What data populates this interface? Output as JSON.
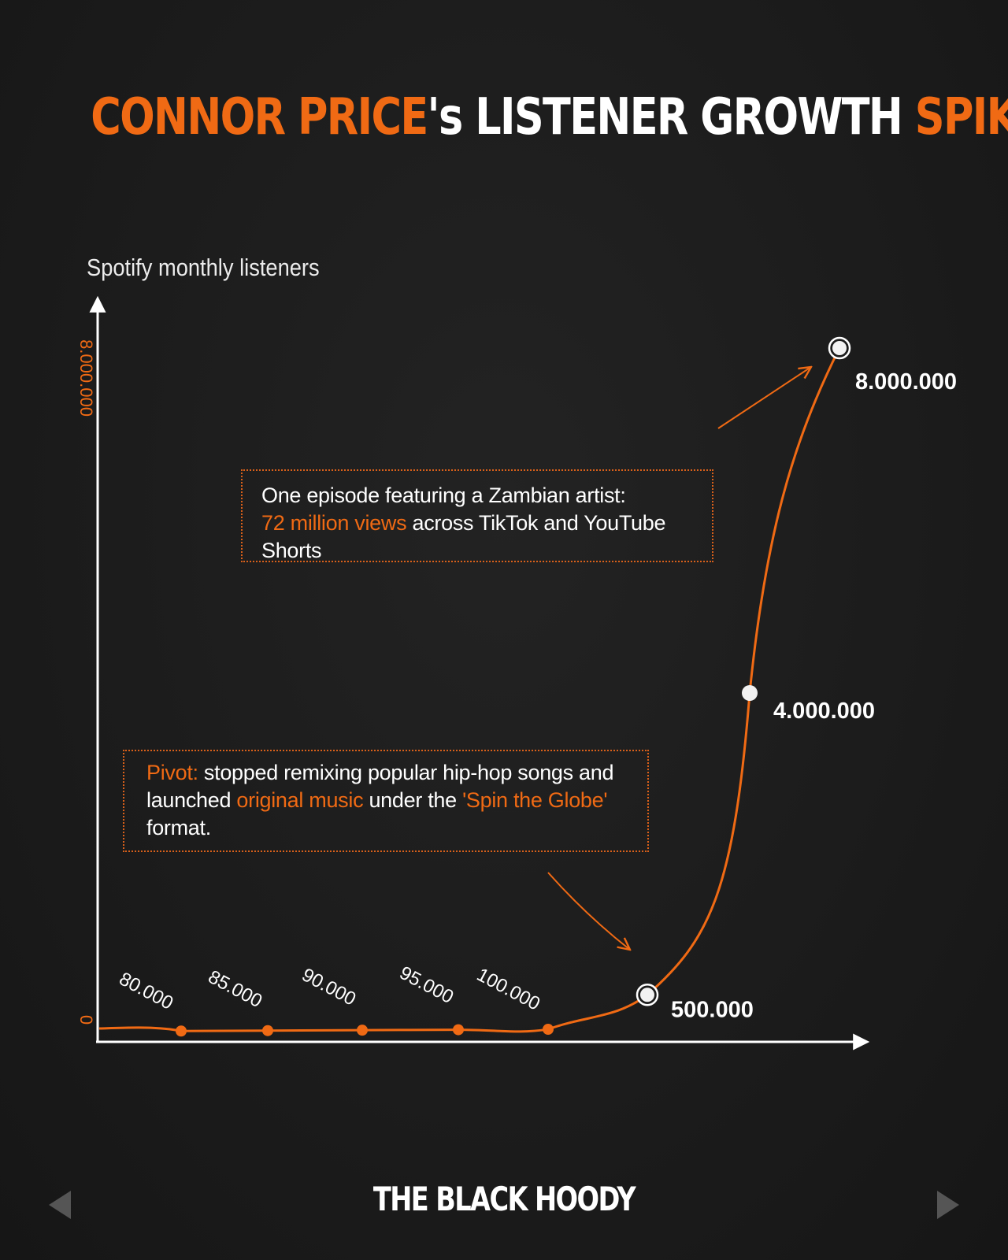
{
  "title": {
    "part1": "CONNOR PRICE",
    "part2": "'s LISTENER GROWTH ",
    "part3": "SPIKE"
  },
  "colors": {
    "accent": "#f06a14",
    "background": "#1c1c1c",
    "text": "#ffffff"
  },
  "chart_data": {
    "type": "line",
    "ylabel": "Spotify monthly listeners",
    "xlabel": "",
    "yticks": [
      "0",
      "8.000.000"
    ],
    "grid": false,
    "points": [
      {
        "label": "80.000",
        "value": 80000
      },
      {
        "label": "85.000",
        "value": 85000
      },
      {
        "label": "90.000",
        "value": 90000
      },
      {
        "label": "95.000",
        "value": 95000
      },
      {
        "label": "100.000",
        "value": 100000
      },
      {
        "label": "500.000",
        "value": 500000
      },
      {
        "label": "4.000.000",
        "value": 4000000
      },
      {
        "label": "8.000.000",
        "value": 8000000
      }
    ]
  },
  "annotations": {
    "viral": {
      "line1": "One episode featuring a Zambian artist:",
      "highlight": "72 million views",
      "rest": " across TikTok and YouTube Shorts"
    },
    "pivot": {
      "hl1": "Pivot:",
      "text1": " stopped remixing popular hip-hop songs and launched ",
      "hl2": "original music",
      "text2": " under the ",
      "hl3": "'Spin the Globe'",
      "text3": " format."
    }
  },
  "brand": "THE BLACK HOODY",
  "nav": {
    "prev_icon": "triangle-left-icon",
    "next_icon": "triangle-right-icon"
  }
}
